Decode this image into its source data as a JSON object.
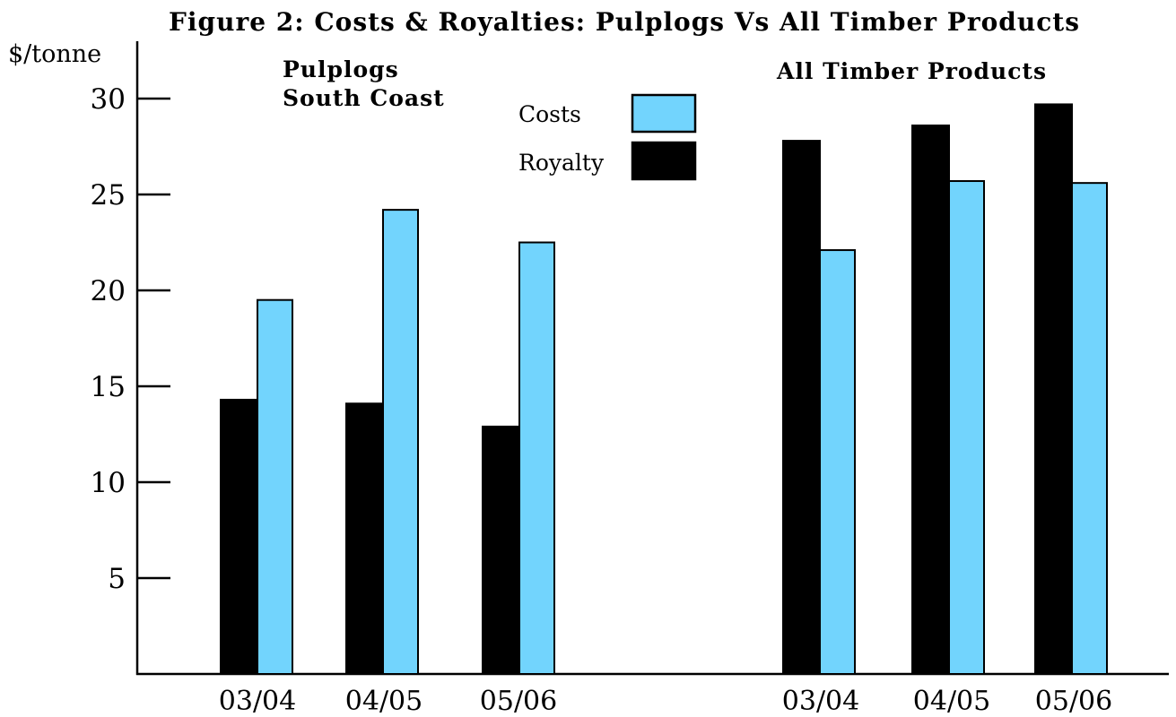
{
  "chart_data": {
    "type": "bar",
    "title": "Figure 2: Costs & Royalties: Pulplogs Vs All Timber Products",
    "ylabel": "$/tonne",
    "ylim": [
      0,
      32
    ],
    "yticks": [
      5,
      10,
      15,
      20,
      25,
      30
    ],
    "yticks_labels": [
      "5",
      "10",
      "15",
      "20",
      "25",
      "30"
    ],
    "legend_placement": "top-center",
    "colors": {
      "Costs": "#72d4fd",
      "Royalty": "#000000"
    },
    "legend": [
      {
        "label": "Costs",
        "series": "Costs"
      },
      {
        "label": "Royalty",
        "series": "Royalty"
      }
    ],
    "groups": [
      {
        "name_lines": [
          "Pulplogs",
          "South Coast"
        ],
        "categories": [
          "03/04",
          "04/05",
          "05/06"
        ],
        "series": [
          {
            "name": "Royalty",
            "values": [
              14.3,
              14.1,
              12.9
            ]
          },
          {
            "name": "Costs",
            "values": [
              19.5,
              24.2,
              22.5
            ]
          }
        ]
      },
      {
        "name_lines": [
          "All Timber Products"
        ],
        "categories": [
          "03/04",
          "04/05",
          "05/06"
        ],
        "series": [
          {
            "name": "Royalty",
            "values": [
              27.8,
              28.6,
              29.7
            ]
          },
          {
            "name": "Costs",
            "values": [
              22.1,
              25.7,
              25.6
            ]
          }
        ]
      }
    ]
  }
}
